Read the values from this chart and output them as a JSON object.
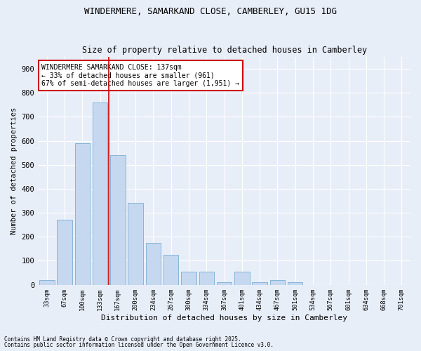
{
  "title1": "WINDERMERE, SAMARKAND CLOSE, CAMBERLEY, GU15 1DG",
  "title2": "Size of property relative to detached houses in Camberley",
  "xlabel": "Distribution of detached houses by size in Camberley",
  "ylabel": "Number of detached properties",
  "bar_color": "#c5d8f0",
  "bar_edge_color": "#7aadd4",
  "background_color": "#e8eef8",
  "grid_color": "#ffffff",
  "categories": [
    "33sqm",
    "67sqm",
    "100sqm",
    "133sqm",
    "167sqm",
    "200sqm",
    "234sqm",
    "267sqm",
    "300sqm",
    "334sqm",
    "367sqm",
    "401sqm",
    "434sqm",
    "467sqm",
    "501sqm",
    "534sqm",
    "567sqm",
    "601sqm",
    "634sqm",
    "668sqm",
    "701sqm"
  ],
  "values": [
    20,
    270,
    590,
    760,
    540,
    340,
    175,
    125,
    55,
    55,
    10,
    55,
    10,
    20,
    10,
    0,
    0,
    0,
    0,
    0,
    0
  ],
  "ylim": [
    0,
    950
  ],
  "yticks": [
    0,
    100,
    200,
    300,
    400,
    500,
    600,
    700,
    800,
    900
  ],
  "red_line_x": 3.5,
  "annotation_text": "WINDERMERE SAMARKAND CLOSE: 137sqm\n← 33% of detached houses are smaller (961)\n67% of semi-detached houses are larger (1,951) →",
  "annotation_box_color": "#ffffff",
  "annotation_box_edge": "#cc0000",
  "footnote1": "Contains HM Land Registry data © Crown copyright and database right 2025.",
  "footnote2": "Contains public sector information licensed under the Open Government Licence v3.0."
}
